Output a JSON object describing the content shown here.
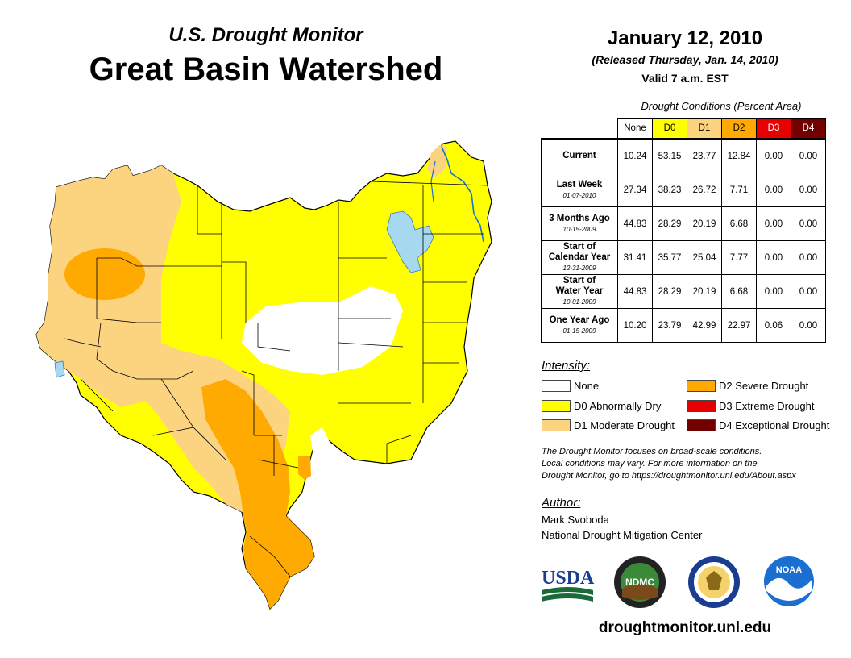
{
  "header": {
    "subtitle": "U.S. Drought Monitor",
    "title": "Great Basin Watershed",
    "date": "January 12, 2010",
    "released": "(Released Thursday, Jan. 14, 2010)",
    "valid": "Valid 7 a.m. EST"
  },
  "table": {
    "caption": "Drought Conditions (Percent Area)",
    "columns": [
      {
        "label": "None",
        "color": "#ffffff",
        "text_color": "#000000"
      },
      {
        "label": "D0",
        "color": "#ffff00",
        "text_color": "#000000"
      },
      {
        "label": "D1",
        "color": "#fcd37f",
        "text_color": "#000000"
      },
      {
        "label": "D2",
        "color": "#ffaa00",
        "text_color": "#000000"
      },
      {
        "label": "D3",
        "color": "#e60000",
        "text_color": "#ffffff"
      },
      {
        "label": "D4",
        "color": "#730000",
        "text_color": "#ffffff"
      }
    ],
    "rows": [
      {
        "label_1": "Current",
        "label_2": "",
        "date": "",
        "values": [
          "10.24",
          "53.15",
          "23.77",
          "12.84",
          "0.00",
          "0.00"
        ]
      },
      {
        "label_1": "Last Week",
        "label_2": "",
        "date": "01-07-2010",
        "values": [
          "27.34",
          "38.23",
          "26.72",
          "7.71",
          "0.00",
          "0.00"
        ]
      },
      {
        "label_1": "3 Months Ago",
        "label_2": "",
        "date": "10-15-2009",
        "values": [
          "44.83",
          "28.29",
          "20.19",
          "6.68",
          "0.00",
          "0.00"
        ]
      },
      {
        "label_1": "Start of",
        "label_2": "Calendar Year",
        "date": "12-31-2009",
        "values": [
          "31.41",
          "35.77",
          "25.04",
          "7.77",
          "0.00",
          "0.00"
        ]
      },
      {
        "label_1": "Start of",
        "label_2": "Water Year",
        "date": "10-01-2009",
        "values": [
          "44.83",
          "28.29",
          "20.19",
          "6.68",
          "0.00",
          "0.00"
        ]
      },
      {
        "label_1": "One Year Ago",
        "label_2": "",
        "date": "01-15-2009",
        "values": [
          "10.20",
          "23.79",
          "42.99",
          "22.97",
          "0.06",
          "0.00"
        ]
      }
    ]
  },
  "legend": {
    "heading": "Intensity:",
    "items": [
      {
        "label": "None",
        "color": "#ffffff"
      },
      {
        "label": "D0 Abnormally Dry",
        "color": "#ffff00"
      },
      {
        "label": "D1 Moderate Drought",
        "color": "#fcd37f"
      },
      {
        "label": "D2 Severe Drought",
        "color": "#ffaa00"
      },
      {
        "label": "D3 Extreme Drought",
        "color": "#e60000"
      },
      {
        "label": "D4 Exceptional Drought",
        "color": "#730000"
      }
    ]
  },
  "note": {
    "line1": "The Drought Monitor focuses on broad-scale conditions.",
    "line2": "Local conditions may vary. For more information on the",
    "line3": "Drought Monitor, go to https://droughtmonitor.unl.edu/About.aspx"
  },
  "author": {
    "heading": "Author:",
    "name": "Mark Svoboda",
    "org": "National Drought Mitigation Center"
  },
  "logos": {
    "usda": "USDA",
    "ndmc": "NDMC",
    "noaa": "NOAA"
  },
  "website": "droughtmonitor.unl.edu",
  "map_colors": {
    "none": "#ffffff",
    "d0": "#ffff00",
    "d1": "#fcd37f",
    "d2": "#ffaa00",
    "water": "#a6d8f0",
    "border": "#000000"
  }
}
